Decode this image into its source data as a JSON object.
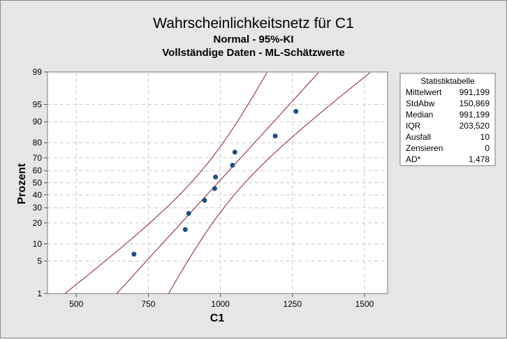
{
  "chart_data": {
    "type": "scatter",
    "title": "Wahrscheinlichkeitsnetz für C1",
    "subtitle_1": "Normal - 95%-KI",
    "subtitle_2": "Vollständige Daten - ML-Schätzwerte",
    "xlabel": "C1",
    "ylabel": "Prozent",
    "xlim": [
      400,
      1580
    ],
    "x_ticks": [
      500,
      750,
      1000,
      1250,
      1500
    ],
    "y_ticks": [
      1,
      5,
      10,
      20,
      30,
      40,
      50,
      60,
      70,
      80,
      90,
      95,
      99
    ],
    "y_scale": "normal-probability",
    "ylim": [
      1,
      99
    ],
    "grid": true,
    "legend_position": "right",
    "mean": 991.199,
    "stdev": 150.869,
    "points": [
      {
        "x": 700,
        "y": 6.7
      },
      {
        "x": 878,
        "y": 16.3
      },
      {
        "x": 890,
        "y": 26.0
      },
      {
        "x": 945,
        "y": 35.6
      },
      {
        "x": 980,
        "y": 45.2
      },
      {
        "x": 983,
        "y": 54.8
      },
      {
        "x": 1042,
        "y": 64.4
      },
      {
        "x": 1050,
        "y": 74.0
      },
      {
        "x": 1190,
        "y": 83.7
      },
      {
        "x": 1262,
        "y": 93.3
      }
    ],
    "colors": {
      "points": "#1f4e8c",
      "fit_line": "#8b1a3a",
      "grid": "#c8c8c8",
      "plot_bg": "#ffffff",
      "page_bg": "#e6e6e6"
    }
  },
  "stats_table": {
    "title": "Statistiktabelle",
    "rows": [
      {
        "label": "Mittelwert",
        "value": "991,199"
      },
      {
        "label": "StdAbw",
        "value": "150,869"
      },
      {
        "label": "Median",
        "value": "991,199"
      },
      {
        "label": "IQR",
        "value": "203,520"
      },
      {
        "label": "Ausfall",
        "value": "10"
      },
      {
        "label": "Zensieren",
        "value": "0"
      },
      {
        "label": "AD*",
        "value": "1,478"
      }
    ]
  }
}
